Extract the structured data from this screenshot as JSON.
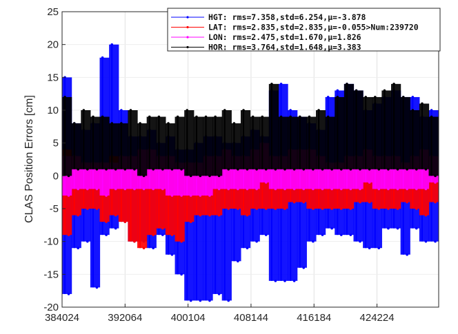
{
  "chart_data": {
    "type": "line",
    "title": "",
    "xlabel": "",
    "ylabel": "CLAS Position Errors [cm]",
    "xlim": [
      384024,
      432100
    ],
    "ylim": [
      -20,
      25
    ],
    "xticks": [
      384024,
      392064,
      400104,
      408144,
      416184,
      424224
    ],
    "yticks": [
      -20,
      -15,
      -10,
      -5,
      0,
      5,
      10,
      15,
      20,
      25
    ],
    "grid": true,
    "legend_position": "top-right",
    "note_on_data": "dense time series shown as per-bin min/max envelope",
    "bin_start_x": [
      384024,
      385224,
      386424,
      387624,
      388824,
      390024,
      391224,
      392424,
      393624,
      394824,
      396024,
      397224,
      398424,
      399624,
      400824,
      402024,
      403224,
      404424,
      405624,
      406824,
      408024,
      409224,
      410424,
      411624,
      412824,
      414024,
      415224,
      416424,
      417624,
      418824,
      420024,
      421224,
      422424,
      423624,
      424824,
      426024,
      427224,
      428424,
      429624,
      430824
    ],
    "bin_width": 1200,
    "series": [
      {
        "name": "HGT: rms=7.358,std=6.254,μ=-3.878",
        "color": "#0000ff",
        "upper": [
          15,
          8,
          7,
          8,
          18,
          20,
          10,
          6,
          6,
          7,
          5,
          6,
          4,
          4,
          5,
          6,
          6,
          5,
          5,
          6,
          7,
          6,
          13,
          14,
          10,
          9,
          8,
          7,
          12,
          13,
          14,
          13,
          10,
          11,
          12,
          13,
          12,
          12,
          9,
          10
        ],
        "lower": [
          -18,
          -11,
          -10,
          -17,
          -9,
          -8,
          -7,
          -10,
          -10,
          -11,
          -9,
          -12,
          -15,
          -19,
          -19,
          -19,
          -18,
          -19,
          -13,
          -11,
          -10,
          -9,
          -16,
          -16,
          -16,
          -14,
          -10,
          -9,
          -8,
          -9,
          -9,
          -10,
          -11,
          -11,
          -8,
          -8,
          -12,
          -8,
          -10,
          -10
        ]
      },
      {
        "name": "LAT: rms=2.835,std=2.835,μ=-0.055>Num:239720",
        "color": "#ff0000",
        "upper": [
          4,
          3,
          2,
          2,
          2,
          3,
          2,
          1,
          1,
          2,
          2,
          1,
          1,
          2,
          1,
          1,
          2,
          2,
          1,
          2,
          3,
          4,
          1,
          2,
          2,
          2,
          2,
          1,
          1,
          2,
          2,
          1,
          2,
          2,
          1,
          1,
          2,
          2,
          1,
          0
        ],
        "lower": [
          -9,
          -6,
          -5,
          -5,
          -7,
          -6,
          -7,
          -10,
          -11,
          -9,
          -8,
          -9,
          -10,
          -7,
          -6,
          -6,
          -6,
          -5,
          -5,
          -6,
          -5,
          -5,
          -5,
          -5,
          -4,
          -4,
          -5,
          -5,
          -5,
          -5,
          -5,
          -4,
          -4,
          -5,
          -5,
          -5,
          -4,
          -5,
          -6,
          -4
        ]
      },
      {
        "name": "LON: rms=2.475,std=1.670,μ=1.826",
        "color": "#ff00ff",
        "upper": [
          3,
          3,
          2,
          2,
          2,
          2,
          3,
          3,
          4,
          4,
          3,
          3,
          2,
          2,
          2,
          3,
          3,
          4,
          3,
          3,
          4,
          5,
          3,
          3,
          4,
          4,
          4,
          3,
          2,
          2,
          3,
          3,
          4,
          3,
          3,
          3,
          2,
          3,
          4,
          3
        ],
        "lower": [
          -3,
          -2,
          -2,
          -2,
          -3,
          -2,
          -2,
          -2,
          -2,
          -2,
          -2,
          -3,
          -3,
          -3,
          -3,
          -3,
          -2,
          -2,
          -2,
          -2,
          -2,
          -1,
          -2,
          -2,
          -2,
          -2,
          -2,
          -2,
          -2,
          -2,
          -2,
          -2,
          -1,
          -2,
          -2,
          -2,
          -2,
          -2,
          -2,
          -1
        ]
      },
      {
        "name": "HOR: rms=3.764,std=1.648,μ=3.383",
        "color": "#000000",
        "upper": [
          12,
          8,
          10,
          9,
          9,
          8,
          8,
          10,
          8,
          9,
          9,
          8,
          9,
          10,
          9,
          9,
          9,
          10,
          8,
          10,
          9,
          9,
          14,
          9,
          9,
          9,
          9,
          10,
          9,
          12,
          14,
          13,
          12,
          12,
          13,
          14,
          12,
          10,
          11,
          9
        ],
        "lower": [
          0,
          1,
          1,
          1,
          1,
          1,
          1,
          1,
          0,
          1,
          1,
          1,
          1,
          0,
          0,
          0,
          0,
          1,
          1,
          1,
          1,
          1,
          1,
          1,
          1,
          1,
          1,
          1,
          1,
          1,
          1,
          1,
          1,
          1,
          1,
          1,
          1,
          1,
          1,
          0
        ]
      }
    ]
  }
}
